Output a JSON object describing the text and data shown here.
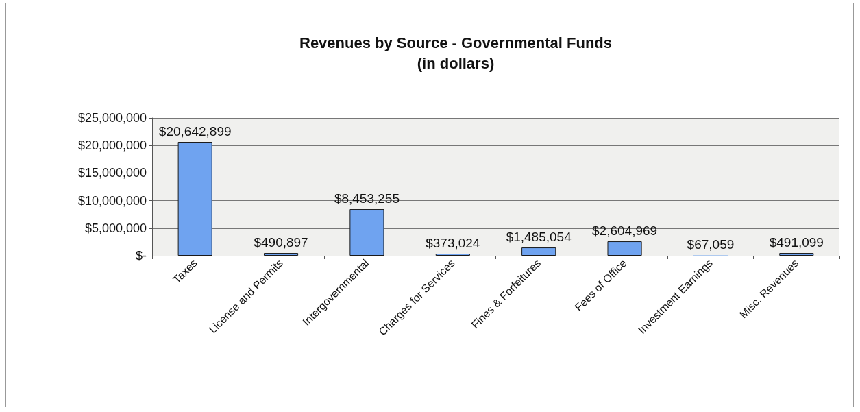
{
  "chart_data": {
    "type": "bar",
    "title": "Revenues by Source - Governmental Funds\n(in dollars)",
    "categories": [
      "Taxes",
      "License and Permits",
      "Intergovernmental",
      "Charges for Services",
      "Fines & Forfeitures",
      "Fees of Office",
      "Investment Earnings",
      "Misc. Revenues"
    ],
    "values": [
      20642899,
      490897,
      8453255,
      373024,
      1485054,
      2604969,
      67059,
      491099
    ],
    "value_labels": [
      "$20,642,899",
      "$490,897",
      "$8,453,255",
      "$373,024",
      "$1,485,054",
      "$2,604,969",
      "$67,059",
      "$491,099"
    ],
    "color": "#6fa3f0",
    "ylim": [
      0,
      25000000
    ],
    "yticks": [
      {
        "value": 0,
        "label": "$-"
      },
      {
        "value": 5000000,
        "label": "$5,000,000"
      },
      {
        "value": 10000000,
        "label": "$10,000,000"
      },
      {
        "value": 15000000,
        "label": "$15,000,000"
      },
      {
        "value": 20000000,
        "label": "$20,000,000"
      },
      {
        "value": 25000000,
        "label": "$25,000,000"
      }
    ],
    "grid": true
  }
}
